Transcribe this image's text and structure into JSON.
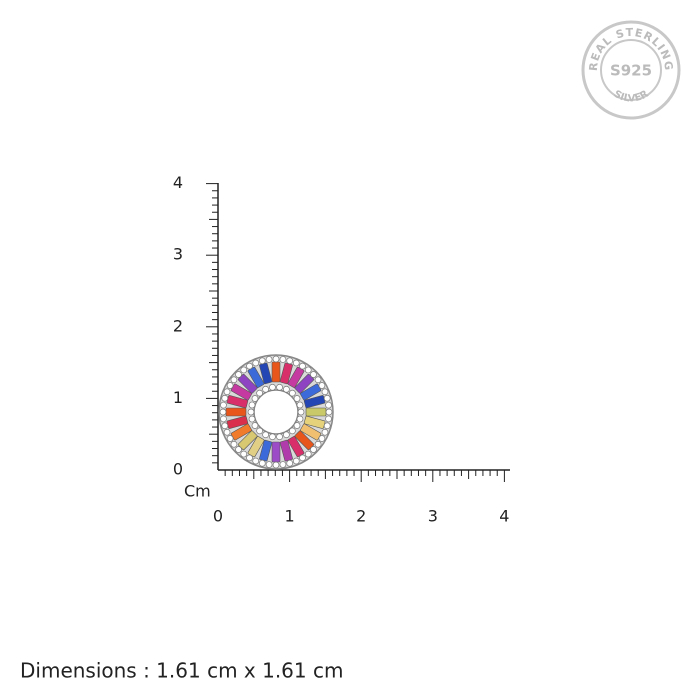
{
  "ruler": {
    "unit": "Cm",
    "x_labels": [
      "0",
      "1",
      "2",
      "3",
      "4"
    ],
    "y_labels": [
      "0",
      "1",
      "2",
      "3",
      "4"
    ]
  },
  "badge": {
    "top": "REAL STERLING",
    "center": "S925",
    "bottom": "SILVER"
  },
  "caption": "Dimensions : 1.61 cm x 1.61 cm"
}
